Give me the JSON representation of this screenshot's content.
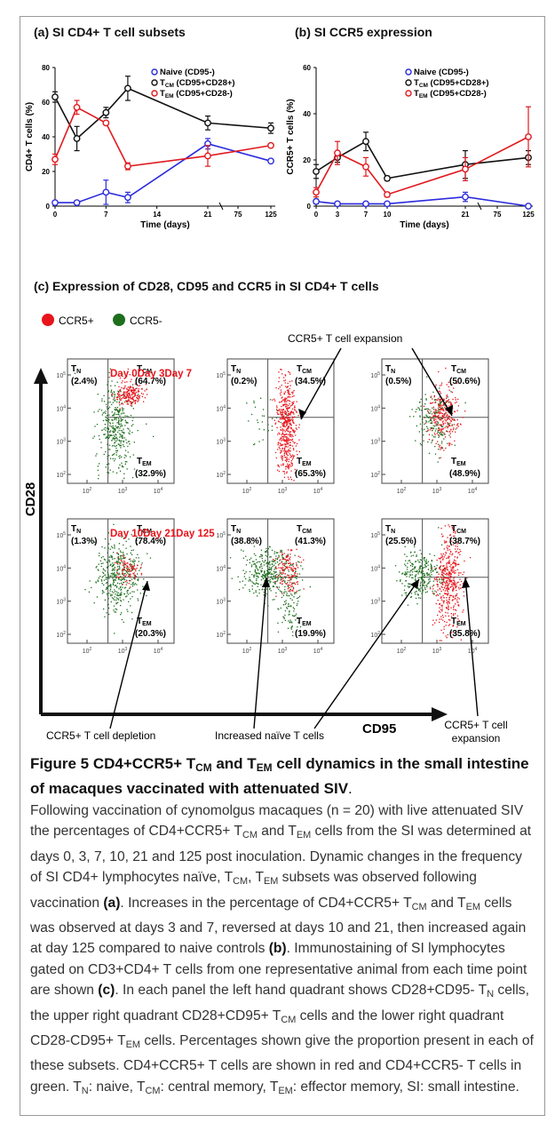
{
  "panel_a": {
    "title": "(a) SI CD4+ T cell subsets"
  },
  "panel_b": {
    "title": "(b) SI CCR5 expression"
  },
  "panel_c": {
    "title": "(c) Expression of CD28, CD95 and CCR5 in SI CD4+ T cells",
    "legend": [
      {
        "label": "CCR5+",
        "color": "#e8141b"
      },
      {
        "label": "CCR5-",
        "color": "#1d6e1d"
      }
    ],
    "y_axis_label": "CD28",
    "x_axis_label": "CD95",
    "day_labels_top": "Day 0Day 3Day 7",
    "day_labels_bottom": "Day 10Day 21Day 125",
    "annotations": {
      "expansion_top": "CCR5+ T cell expansion",
      "depletion": "CCR5+ T cell depletion",
      "naive": "Increased naïve T cells",
      "expansion_bottom_1": "CCR5+ T cell",
      "expansion_bottom_2": "expansion"
    },
    "quadrant_labels": {
      "tn": "T",
      "tn_sub": "N",
      "tcm": "T",
      "tcm_sub": "CM",
      "tem": "T",
      "tem_sub": "EM"
    },
    "plots": [
      {
        "day": "0",
        "tn": "(2.4%)",
        "tcm": "(64.7%)",
        "tem": "(32.9%)"
      },
      {
        "day": "3",
        "tn": "(0.2%)",
        "tcm": "(34.5%)",
        "tem": "(65.3%)"
      },
      {
        "day": "7",
        "tn": "(0.5%)",
        "tcm": "(50.6%)",
        "tem": "(48.9%)"
      },
      {
        "day": "10",
        "tn": "(1.3%)",
        "tcm": "(78.4%)",
        "tem": "(20.3%)"
      },
      {
        "day": "21",
        "tn": "(38.8%)",
        "tcm": "(41.3%)",
        "tem": "(19.9%)"
      },
      {
        "day": "125",
        "tn": "(25.5%)",
        "tcm": "(38.7%)",
        "tem": "(35.8%)"
      }
    ],
    "ytick_labels": [
      "10",
      "10",
      "10",
      "10"
    ],
    "ytick_exps": [
      "5",
      "4",
      "3",
      "2"
    ],
    "xtick_labels": [
      "10",
      "10",
      "10"
    ],
    "xtick_exps": [
      "2",
      "3",
      "4"
    ]
  },
  "caption": {
    "figure_label": "Figure 5",
    "title_part1": "CD4+CCR5+ T",
    "title_sub1": "CM",
    "title_part2": " and T",
    "title_sub2": "EM",
    "title_part3": " cell dynamics in the small intestine of macaques vaccinated with attenuated SIV",
    "title_end": ".",
    "body": [
      {
        "t": "Following vaccination of cynomolgus macaques (n = 20) with live attenuated SIV the percentages of CD4+CCR5+ T"
      },
      {
        "s": "CM"
      },
      {
        "t": " and T"
      },
      {
        "s": "EM"
      },
      {
        "t": " cells from the SI was determined at days 0, 3, 7, 10, 21 and 125 post inoculation. Dynamic changes in the frequency of SI CD4+ lymphocytes naïve, T"
      },
      {
        "s": "CM"
      },
      {
        "t": ", T"
      },
      {
        "s": "EM"
      },
      {
        "t": " subsets was observed following vaccination "
      },
      {
        "b": "(a)"
      },
      {
        "t": ". Increases in the percentage of CD4+CCR5+ T"
      },
      {
        "s": "CM"
      },
      {
        "t": " and T"
      },
      {
        "s": "EM"
      },
      {
        "t": " cells was observed at days 3 and 7, reversed at days 10 and 21, then increased again at day 125 compared to naive controls "
      },
      {
        "b": "(b)"
      },
      {
        "t": ". Immunostaining of SI lymphocytes gated on CD3+CD4+ T cells from one representative animal from each time point are shown "
      },
      {
        "b": "(c)"
      },
      {
        "t": ". In each panel the left hand quadrant shows CD28+CD95- T"
      },
      {
        "s": "N"
      },
      {
        "t": " cells, the upper right quadrant CD28+CD95+ T"
      },
      {
        "s": "CM"
      },
      {
        "t": " cells and the lower right quadrant CD28-CD95+ T"
      },
      {
        "s": "EM"
      },
      {
        "t": " cells. Percentages shown give the proportion present in each of these subsets. CD4+CCR5+ T cells are shown in red and CD4+CCR5- T cells in green. T"
      },
      {
        "s": "N"
      },
      {
        "t": ": naive, T"
      },
      {
        "s": "CM"
      },
      {
        "t": ": central memory, T"
      },
      {
        "s": "EM"
      },
      {
        "t": ": effector memory, SI: small intestine."
      }
    ]
  },
  "chart_data": [
    {
      "type": "line",
      "xlabel": "Time (days)",
      "ylabel": "CD4+ T cells (%)",
      "ylim": [
        0,
        80
      ],
      "yticks": [
        0,
        20,
        40,
        60,
        80
      ],
      "xticks": [
        "0",
        "7",
        "14",
        "21",
        "75",
        "125"
      ],
      "x": [
        0,
        3,
        7,
        10,
        21,
        125
      ],
      "series": [
        {
          "name": "Naive (CD95-)",
          "name_prefix": "",
          "name_sub": "",
          "name_suffix": "Naive (CD95-)",
          "color": "#2b2bdd",
          "values": [
            2,
            2,
            8,
            5,
            36,
            26
          ],
          "err": [
            1,
            1,
            7,
            3,
            3,
            1
          ]
        },
        {
          "name": "TCM (CD95+CD28+)",
          "name_prefix": "T",
          "name_sub": "CM",
          "name_suffix": " (CD95+CD28+)",
          "color": "#111111",
          "values": [
            63,
            39,
            54,
            68,
            48,
            45
          ],
          "err": [
            3,
            7,
            3,
            7,
            4,
            3
          ]
        },
        {
          "name": "TEM (CD95+CD28-)",
          "name_prefix": "T",
          "name_sub": "EM",
          "name_suffix": " (CD95+CD28-)",
          "color": "#e0191e",
          "values": [
            27,
            57,
            48,
            23,
            29,
            35
          ],
          "err": [
            3,
            4,
            1,
            2,
            6,
            1
          ]
        }
      ]
    },
    {
      "type": "line",
      "xlabel": "Time (days)",
      "ylabel": "CCR5+ T cells (%)",
      "ylim": [
        0,
        60
      ],
      "yticks": [
        0,
        20,
        40,
        60
      ],
      "xticks": [
        "0",
        "3",
        "7",
        "10",
        "21",
        "75",
        "125"
      ],
      "x": [
        0,
        3,
        7,
        10,
        21,
        125
      ],
      "series": [
        {
          "name": "Naive (CD95-)",
          "name_prefix": "",
          "name_sub": "",
          "name_suffix": "Naive (CD95-)",
          "color": "#2b2bdd",
          "values": [
            2,
            1,
            1,
            1,
            4,
            0
          ],
          "err": [
            1,
            0.5,
            0.5,
            0.5,
            2,
            0.5
          ]
        },
        {
          "name": "TCM (CD95+CD28+)",
          "name_prefix": "T",
          "name_sub": "CM",
          "name_suffix": " (CD95+CD28+)",
          "color": "#111111",
          "values": [
            15,
            21,
            28,
            12,
            18,
            21
          ],
          "err": [
            3,
            2,
            4,
            1,
            6,
            3
          ]
        },
        {
          "name": "TEM (CD95+CD28-)",
          "name_prefix": "T",
          "name_sub": "EM",
          "name_suffix": " (CD95+CD28-)",
          "color": "#e0191e",
          "values": [
            6,
            23,
            17,
            5,
            16,
            30
          ],
          "err": [
            2,
            5,
            4,
            1,
            5,
            13
          ]
        }
      ]
    }
  ]
}
